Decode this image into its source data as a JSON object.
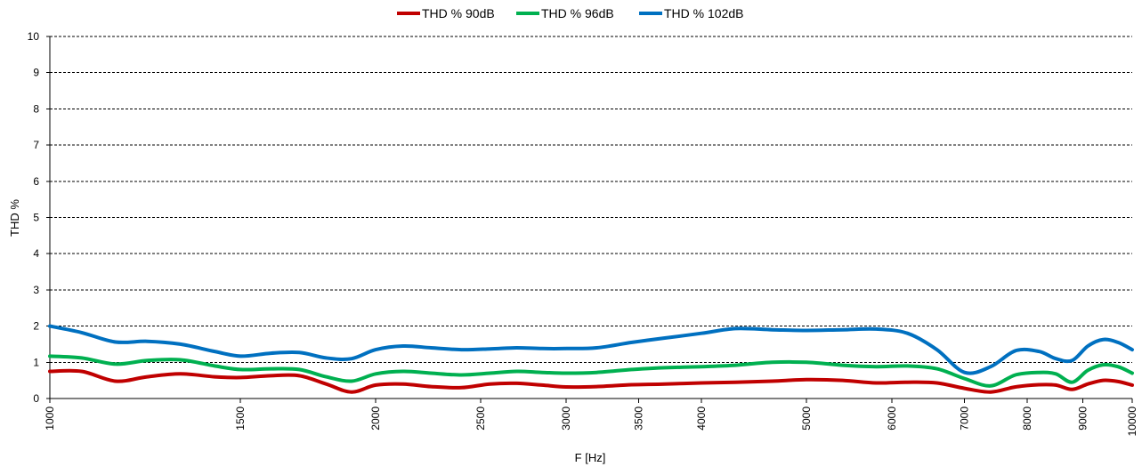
{
  "chart_data": {
    "type": "line",
    "title": "",
    "xlabel": "F [Hz]",
    "ylabel": "THD  %",
    "x_scale": "log",
    "xlim": [
      1000,
      10000
    ],
    "ylim": [
      0,
      10
    ],
    "grid": "horizontal-dashed",
    "legend_position": "top-center",
    "x_ticks": [
      1000,
      1500,
      2000,
      2500,
      3000,
      3500,
      4000,
      5000,
      6000,
      7000,
      8000,
      9000,
      10000
    ],
    "y_ticks": [
      0,
      1,
      2,
      3,
      4,
      5,
      6,
      7,
      8,
      9,
      10
    ],
    "x": [
      1000,
      1070,
      1150,
      1230,
      1320,
      1420,
      1500,
      1600,
      1700,
      1800,
      1900,
      2000,
      2120,
      2250,
      2400,
      2550,
      2700,
      2850,
      3000,
      3200,
      3450,
      3700,
      4000,
      4300,
      4650,
      5000,
      5400,
      5800,
      6200,
      6600,
      7000,
      7400,
      7800,
      8200,
      8500,
      8800,
      9100,
      9400,
      9700,
      10000
    ],
    "series": [
      {
        "name": "THD % 90dB",
        "color": "#c00000",
        "values": [
          0.75,
          0.75,
          0.48,
          0.6,
          0.68,
          0.6,
          0.58,
          0.63,
          0.63,
          0.4,
          0.18,
          0.37,
          0.4,
          0.33,
          0.3,
          0.4,
          0.42,
          0.37,
          0.32,
          0.33,
          0.38,
          0.4,
          0.43,
          0.45,
          0.48,
          0.52,
          0.5,
          0.43,
          0.45,
          0.43,
          0.28,
          0.18,
          0.32,
          0.38,
          0.37,
          0.25,
          0.4,
          0.5,
          0.47,
          0.37
        ]
      },
      {
        "name": "THD % 96dB",
        "color": "#00b050",
        "values": [
          1.17,
          1.12,
          0.95,
          1.05,
          1.07,
          0.9,
          0.8,
          0.82,
          0.8,
          0.6,
          0.48,
          0.68,
          0.75,
          0.7,
          0.65,
          0.7,
          0.75,
          0.72,
          0.7,
          0.72,
          0.8,
          0.85,
          0.88,
          0.92,
          1.0,
          1.0,
          0.92,
          0.88,
          0.9,
          0.82,
          0.55,
          0.35,
          0.65,
          0.72,
          0.68,
          0.45,
          0.78,
          0.93,
          0.88,
          0.7
        ]
      },
      {
        "name": "THD % 102dB",
        "color": "#0070c0",
        "values": [
          2.0,
          1.82,
          1.56,
          1.58,
          1.5,
          1.3,
          1.17,
          1.25,
          1.27,
          1.12,
          1.1,
          1.35,
          1.45,
          1.4,
          1.35,
          1.37,
          1.4,
          1.38,
          1.38,
          1.4,
          1.55,
          1.67,
          1.8,
          1.93,
          1.9,
          1.88,
          1.9,
          1.92,
          1.8,
          1.35,
          0.72,
          0.88,
          1.32,
          1.3,
          1.1,
          1.05,
          1.45,
          1.63,
          1.55,
          1.35
        ]
      }
    ]
  }
}
